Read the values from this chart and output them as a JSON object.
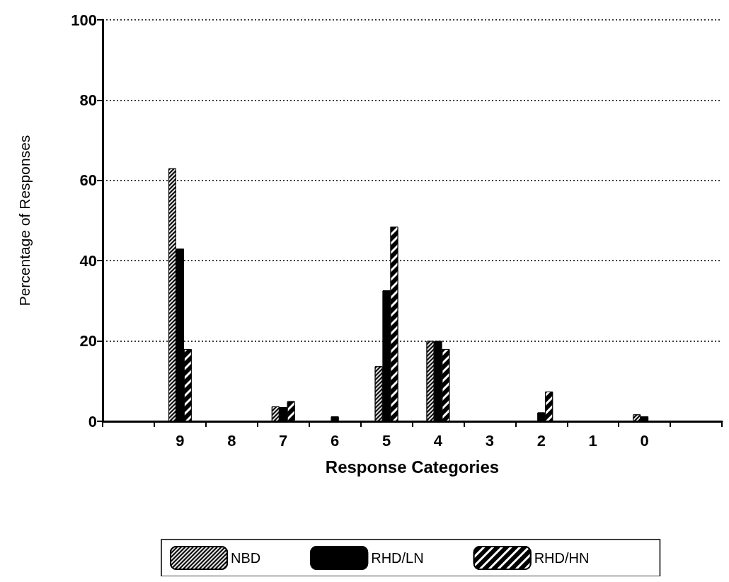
{
  "chart_data": {
    "type": "bar",
    "xlabel": "Response Categories",
    "ylabel": "Percentage of Responses",
    "categories": [
      null,
      "9",
      "8",
      "7",
      "6",
      "5",
      "4",
      "3",
      "2",
      "1",
      "0",
      null
    ],
    "series": [
      {
        "name": "NBD",
        "color": "#000000",
        "values": [
          0,
          63,
          0,
          3.7,
          0,
          13.7,
          20,
          0,
          0,
          0,
          1.7,
          0
        ]
      },
      {
        "name": "RHD/LN",
        "color": "#000000",
        "values": [
          0,
          43,
          0,
          3.5,
          1.2,
          32.6,
          20,
          0,
          2.2,
          0,
          1.2,
          0
        ]
      },
      {
        "name": "RHD/HN",
        "color": "#000000",
        "values": [
          0,
          18,
          0,
          5,
          0,
          48.5,
          18,
          0,
          7.4,
          0,
          0,
          0
        ]
      }
    ],
    "ylim": [
      0,
      100
    ],
    "yticks": [
      0,
      20,
      40,
      60,
      80,
      100
    ],
    "grid": "y",
    "legend": "bottom"
  }
}
